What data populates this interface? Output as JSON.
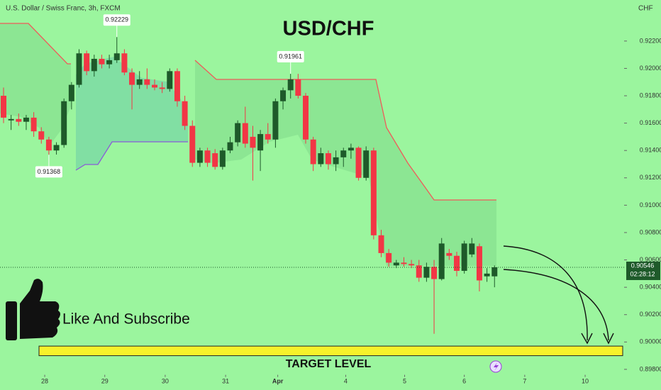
{
  "chart_data": {
    "type": "candlestick",
    "header": "U.S. Dollar / Swiss Franc, 3h, FXCM",
    "title": "USD/CHF",
    "currency": "CHF",
    "up_color": "#1e5a2a",
    "down_color": "#f23645",
    "ylim": [
      0.8976,
      0.925
    ],
    "yticks": [
      {
        "value": 0.922,
        "label": "0.92200"
      },
      {
        "value": 0.92,
        "label": "0.92000"
      },
      {
        "value": 0.918,
        "label": "0.91800"
      },
      {
        "value": 0.916,
        "label": "0.91600"
      },
      {
        "value": 0.914,
        "label": "0.91400"
      },
      {
        "value": 0.912,
        "label": "0.91200"
      },
      {
        "value": 0.91,
        "label": "0.91000"
      },
      {
        "value": 0.908,
        "label": "0.90800"
      },
      {
        "value": 0.906,
        "label": "0.90600"
      },
      {
        "value": 0.904,
        "label": "0.90400"
      },
      {
        "value": 0.902,
        "label": "0.90200"
      },
      {
        "value": 0.9,
        "label": "0.90000"
      },
      {
        "value": 0.898,
        "label": "0.89800"
      }
    ],
    "xlim": [
      -0.47,
      82.16
    ],
    "xticks": [
      {
        "value": 5.45,
        "label": "28"
      },
      {
        "value": 13.4,
        "label": "29"
      },
      {
        "value": 21.4,
        "label": "30"
      },
      {
        "value": 29.4,
        "label": "31"
      },
      {
        "value": 36.3,
        "label": "Apr"
      },
      {
        "value": 45.3,
        "label": "4"
      },
      {
        "value": 53.1,
        "label": "5"
      },
      {
        "value": 61.0,
        "label": "6"
      },
      {
        "value": 69.0,
        "label": "7"
      },
      {
        "value": 77.0,
        "label": "10"
      }
    ],
    "open": [
      0.918,
      0.9162,
      0.9163,
      0.9161,
      0.9164,
      0.9154,
      0.9148,
      0.914,
      0.9144,
      0.9176,
      0.9188,
      0.9211,
      0.9198,
      0.9207,
      0.9203,
      0.9206,
      0.9211,
      0.9197,
      0.9188,
      0.9192,
      0.9188,
      0.9186,
      0.9185,
      0.9198,
      0.9176,
      0.9158,
      0.9131,
      0.914,
      0.9138,
      0.9128,
      0.914,
      0.9146,
      0.916,
      0.915,
      0.914,
      0.9152,
      0.9148,
      0.9176,
      0.9184,
      0.9192,
      0.918,
      0.9148,
      0.913,
      0.9138,
      0.913,
      0.9135,
      0.914,
      0.9142,
      0.912,
      0.914,
      0.9078,
      0.9065,
      0.9056,
      0.9058,
      0.9057,
      0.9056,
      0.9047,
      0.9055,
      0.9046,
      0.9065,
      0.9063,
      0.9052,
      0.9064,
      0.907,
      0.9048,
      0.9048
    ],
    "high": [
      0.9186,
      0.9166,
      0.9167,
      0.9166,
      0.9168,
      0.9157,
      0.915,
      0.9146,
      0.9178,
      0.919,
      0.9214,
      0.9213,
      0.921,
      0.921,
      0.921,
      0.9223,
      0.9214,
      0.92,
      0.9198,
      0.92,
      0.9192,
      0.919,
      0.92,
      0.92,
      0.918,
      0.9162,
      0.9142,
      0.9142,
      0.9141,
      0.9142,
      0.915,
      0.9162,
      0.9172,
      0.9158,
      0.9155,
      0.916,
      0.9178,
      0.9186,
      0.9196,
      0.9196,
      0.9182,
      0.915,
      0.9142,
      0.914,
      0.914,
      0.9142,
      0.9145,
      0.9143,
      0.9143,
      0.9142,
      0.9082,
      0.9068,
      0.906,
      0.9062,
      0.906,
      0.906,
      0.9058,
      0.906,
      0.9076,
      0.9068,
      0.9066,
      0.9074,
      0.9076,
      0.9072,
      0.9054,
      0.9056
    ],
    "low": [
      0.916,
      0.9155,
      0.9158,
      0.9155,
      0.915,
      0.9145,
      0.9137,
      0.9137,
      0.9142,
      0.917,
      0.9186,
      0.9195,
      0.9194,
      0.92,
      0.92,
      0.9204,
      0.9195,
      0.917,
      0.9185,
      0.9185,
      0.9184,
      0.9182,
      0.9183,
      0.9172,
      0.9155,
      0.9128,
      0.9128,
      0.9128,
      0.9126,
      0.9126,
      0.9138,
      0.9143,
      0.9142,
      0.9118,
      0.9125,
      0.9145,
      0.9142,
      0.917,
      0.9178,
      0.9178,
      0.9145,
      0.9125,
      0.9128,
      0.9126,
      0.9125,
      0.9128,
      0.9134,
      0.9118,
      0.9118,
      0.9075,
      0.9062,
      0.9055,
      0.9054,
      0.9055,
      0.9054,
      0.9044,
      0.9044,
      0.9006,
      0.9045,
      0.906,
      0.9048,
      0.905,
      0.9062,
      0.9037,
      0.9044,
      0.904
    ],
    "close": [
      0.9164,
      0.9163,
      0.9161,
      0.9164,
      0.9154,
      0.9148,
      0.914,
      0.9144,
      0.9176,
      0.9188,
      0.9211,
      0.9198,
      0.9207,
      0.9203,
      0.9206,
      0.9211,
      0.9197,
      0.9188,
      0.9192,
      0.9188,
      0.9186,
      0.9185,
      0.9198,
      0.9176,
      0.9158,
      0.9131,
      0.914,
      0.9131,
      0.9128,
      0.914,
      0.9146,
      0.916,
      0.9145,
      0.9142,
      0.9152,
      0.9148,
      0.9176,
      0.9184,
      0.9192,
      0.918,
      0.9148,
      0.913,
      0.9138,
      0.913,
      0.9135,
      0.914,
      0.9142,
      0.912,
      0.914,
      0.9078,
      0.9065,
      0.9058,
      0.9058,
      0.9057,
      0.9056,
      0.9047,
      0.9055,
      0.9046,
      0.9072,
      0.9063,
      0.9052,
      0.9072,
      0.9072,
      0.9045,
      0.905,
      0.90546
    ],
    "annotations": [
      {
        "text": "0.92229",
        "value": 0.92229,
        "x": 15,
        "position": "above"
      },
      {
        "text": "0.91961",
        "value": 0.91961,
        "x": 38,
        "position": "above"
      },
      {
        "text": "0.91368",
        "value": 0.91368,
        "x": 6,
        "position": "below"
      }
    ],
    "last_price": {
      "value": 0.90546,
      "label": "0.90546",
      "countdown": "02:28:12"
    },
    "target": {
      "label": "TARGET LEVEL",
      "range": [
        0.899,
        0.8997
      ]
    },
    "cta": "Like And Subscribe"
  }
}
